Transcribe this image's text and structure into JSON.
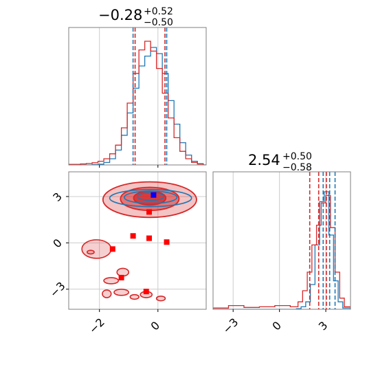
{
  "chart_data": [
    {
      "panel": "marginal-param-1",
      "type": "histogram",
      "title": {
        "main": "−0.28",
        "upper": "+0.52",
        "lower": "−0.50"
      },
      "xlim": [
        -3.05,
        1.65
      ],
      "grid": true,
      "series": [
        {
          "color": "#1f77b4",
          "bin_edges": [
            -3.05,
            -2.85,
            -2.65,
            -2.45,
            -2.25,
            -2.05,
            -1.85,
            -1.65,
            -1.45,
            -1.25,
            -1.05,
            -0.85,
            -0.65,
            -0.45,
            -0.25,
            -0.05,
            0.15,
            0.35,
            0.55,
            0.75,
            0.95,
            1.15,
            1.35,
            1.55,
            1.65
          ],
          "counts": [
            0,
            0,
            0,
            0,
            0.003,
            0.006,
            0.02,
            0.05,
            0.12,
            0.24,
            0.42,
            0.62,
            0.8,
            0.88,
            0.95,
            0.9,
            0.74,
            0.52,
            0.33,
            0.18,
            0.08,
            0.03,
            0.01,
            0
          ]
        },
        {
          "color": "#d62728",
          "bin_edges": [
            -3.05,
            -2.85,
            -2.65,
            -2.45,
            -2.25,
            -2.05,
            -1.85,
            -1.65,
            -1.45,
            -1.25,
            -1.05,
            -0.85,
            -0.65,
            -0.45,
            -0.25,
            -0.05,
            0.15,
            0.35,
            0.55,
            0.75,
            0.95,
            1.15,
            1.35,
            1.55,
            1.65
          ],
          "counts": [
            0.005,
            0.005,
            0.008,
            0.012,
            0.018,
            0.03,
            0.05,
            0.09,
            0.16,
            0.3,
            0.5,
            0.74,
            0.93,
            1.0,
            0.92,
            0.78,
            0.58,
            0.38,
            0.22,
            0.11,
            0.05,
            0.02,
            0.008,
            0
          ]
        }
      ],
      "quantile_lines": [
        {
          "color": "#1f77b4",
          "x": [
            -0.85,
            0.3
          ]
        },
        {
          "color": "#d62728",
          "x": [
            -0.78,
            0.24
          ]
        }
      ]
    },
    {
      "panel": "marginal-param-2",
      "type": "histogram",
      "title": {
        "main": "2.54",
        "upper": "+0.50",
        "lower": "−0.58"
      },
      "xlim": [
        -4.3,
        4.6
      ],
      "xticks": [
        -3,
        0,
        3
      ],
      "xtick_labels": [
        "−3",
        "0",
        "3"
      ],
      "grid": true,
      "series": [
        {
          "color": "#1f77b4",
          "bin_edges": [
            -4.3,
            1.1,
            1.4,
            1.7,
            2.0,
            2.3,
            2.6,
            2.9,
            3.2,
            3.5,
            3.8,
            4.1,
            4.6
          ],
          "counts": [
            0,
            0.005,
            0.02,
            0.06,
            0.2,
            0.52,
            0.87,
            0.95,
            0.6,
            0.23,
            0.06,
            0.01
          ]
        },
        {
          "color": "#d62728",
          "bin_edges": [
            -4.3,
            -3.3,
            -2.3,
            -1.3,
            -0.3,
            0.7,
            1.2,
            1.5,
            1.8,
            2.1,
            2.4,
            2.7,
            3.0,
            3.3,
            3.6,
            3.9,
            4.2,
            4.6
          ],
          "counts": [
            0.01,
            0.03,
            0.015,
            0.02,
            0.03,
            0.02,
            0.06,
            0.15,
            0.3,
            0.52,
            0.68,
            0.86,
            0.92,
            0.66,
            0.3,
            0.09,
            0.02
          ]
        }
      ],
      "quantile_lines": [
        {
          "color": "#1f77b4",
          "x": [
            2.83,
            3.6
          ]
        },
        {
          "color": "#d62728",
          "x": [
            1.96,
            3.04
          ]
        },
        {
          "color": "#1f77b4",
          "x": [
            3.25
          ]
        },
        {
          "color": "#d62728",
          "x": [
            2.54
          ]
        }
      ]
    },
    {
      "panel": "joint-param-1-param-2",
      "type": "contour",
      "xlim": [
        -3.05,
        1.65
      ],
      "ylim": [
        -4.3,
        4.6
      ],
      "xticks": [
        -2,
        0
      ],
      "xtick_labels": [
        "−2",
        "0"
      ],
      "yticks": [
        -3,
        0,
        3
      ],
      "ytick_labels": [
        "−3",
        "0",
        "3"
      ],
      "grid": true,
      "red_filled_contours": [
        {
          "opacity": 0.28,
          "center": [
            -0.28,
            2.8
          ],
          "radii": [
            1.6,
            1.15
          ]
        },
        {
          "opacity": 0.5,
          "center": [
            -0.28,
            2.85
          ],
          "radii": [
            1.0,
            0.75
          ]
        },
        {
          "opacity": 0.75,
          "center": [
            -0.28,
            2.9
          ],
          "radii": [
            0.55,
            0.45
          ]
        }
      ],
      "red_small_regions": [
        [
          -2.1,
          -0.4,
          0.5,
          0.6
        ],
        [
          -1.2,
          -1.9,
          0.2,
          0.25
        ],
        [
          -1.6,
          -2.45,
          0.25,
          0.2
        ],
        [
          -1.75,
          -3.3,
          0.15,
          0.25
        ],
        [
          -1.25,
          -3.2,
          0.25,
          0.2
        ],
        [
          -0.8,
          -3.5,
          0.15,
          0.15
        ],
        [
          -0.4,
          -3.35,
          0.2,
          0.2
        ],
        [
          0.1,
          -3.6,
          0.15,
          0.15
        ],
        [
          -2.3,
          -0.6,
          0.12,
          0.12
        ]
      ],
      "blue_contours": [
        {
          "center": [
            -0.25,
            2.9
          ],
          "radii": [
            1.4,
            0.55
          ]
        },
        {
          "center": [
            -0.25,
            2.95
          ],
          "radii": [
            0.9,
            0.4
          ]
        },
        {
          "center": [
            -0.25,
            3.0
          ],
          "radii": [
            0.45,
            0.25
          ]
        }
      ],
      "red_markers": [
        [
          -0.3,
          2.0
        ],
        [
          -0.85,
          0.45
        ],
        [
          -0.3,
          0.3
        ],
        [
          0.3,
          0.05
        ],
        [
          -1.55,
          -0.4
        ],
        [
          -1.25,
          -2.25
        ],
        [
          -0.4,
          -3.15
        ]
      ],
      "blue_markers": [
        [
          -0.15,
          3.1
        ]
      ]
    }
  ]
}
